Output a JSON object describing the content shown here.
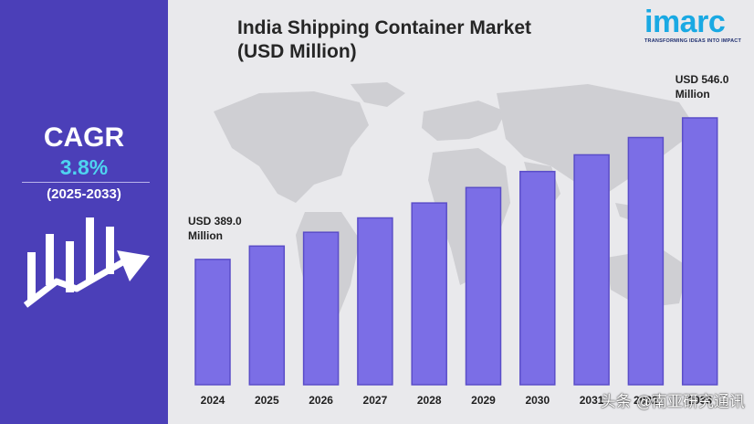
{
  "side_panel": {
    "cagr_label": "CAGR",
    "cagr_value": "3.8%",
    "period": "(2025-2033)"
  },
  "logo": {
    "word": "imarc",
    "tagline": "TRANSFORMING IDEAS INTO IMPACT"
  },
  "watermark": "头条 @南亚研究通讯",
  "colors": {
    "panel": "#4b3fb8",
    "bar": "#7b6ee6",
    "bar_edge": "#5a4dc8",
    "cagr_value": "#4fd3f0",
    "logo": "#1aa9e3"
  },
  "chart_data": {
    "type": "bar",
    "title_lines": [
      "India Shipping Container Market",
      "(USD Million)"
    ],
    "categories": [
      "2024",
      "2025",
      "2026",
      "2027",
      "2028",
      "2029",
      "2030",
      "2031",
      "2032",
      "2033"
    ],
    "values": [
      389.0,
      403.8,
      419.1,
      435.0,
      451.6,
      468.7,
      486.5,
      505.0,
      524.2,
      546.0
    ],
    "ylim": [
      250,
      560
    ],
    "annotations": [
      {
        "category": "2024",
        "lines": [
          "USD 389.0",
          "Million"
        ]
      },
      {
        "category": "2033",
        "lines": [
          "USD 546.0",
          "Million"
        ]
      }
    ],
    "xlabel": "",
    "ylabel": "",
    "grid": false
  }
}
